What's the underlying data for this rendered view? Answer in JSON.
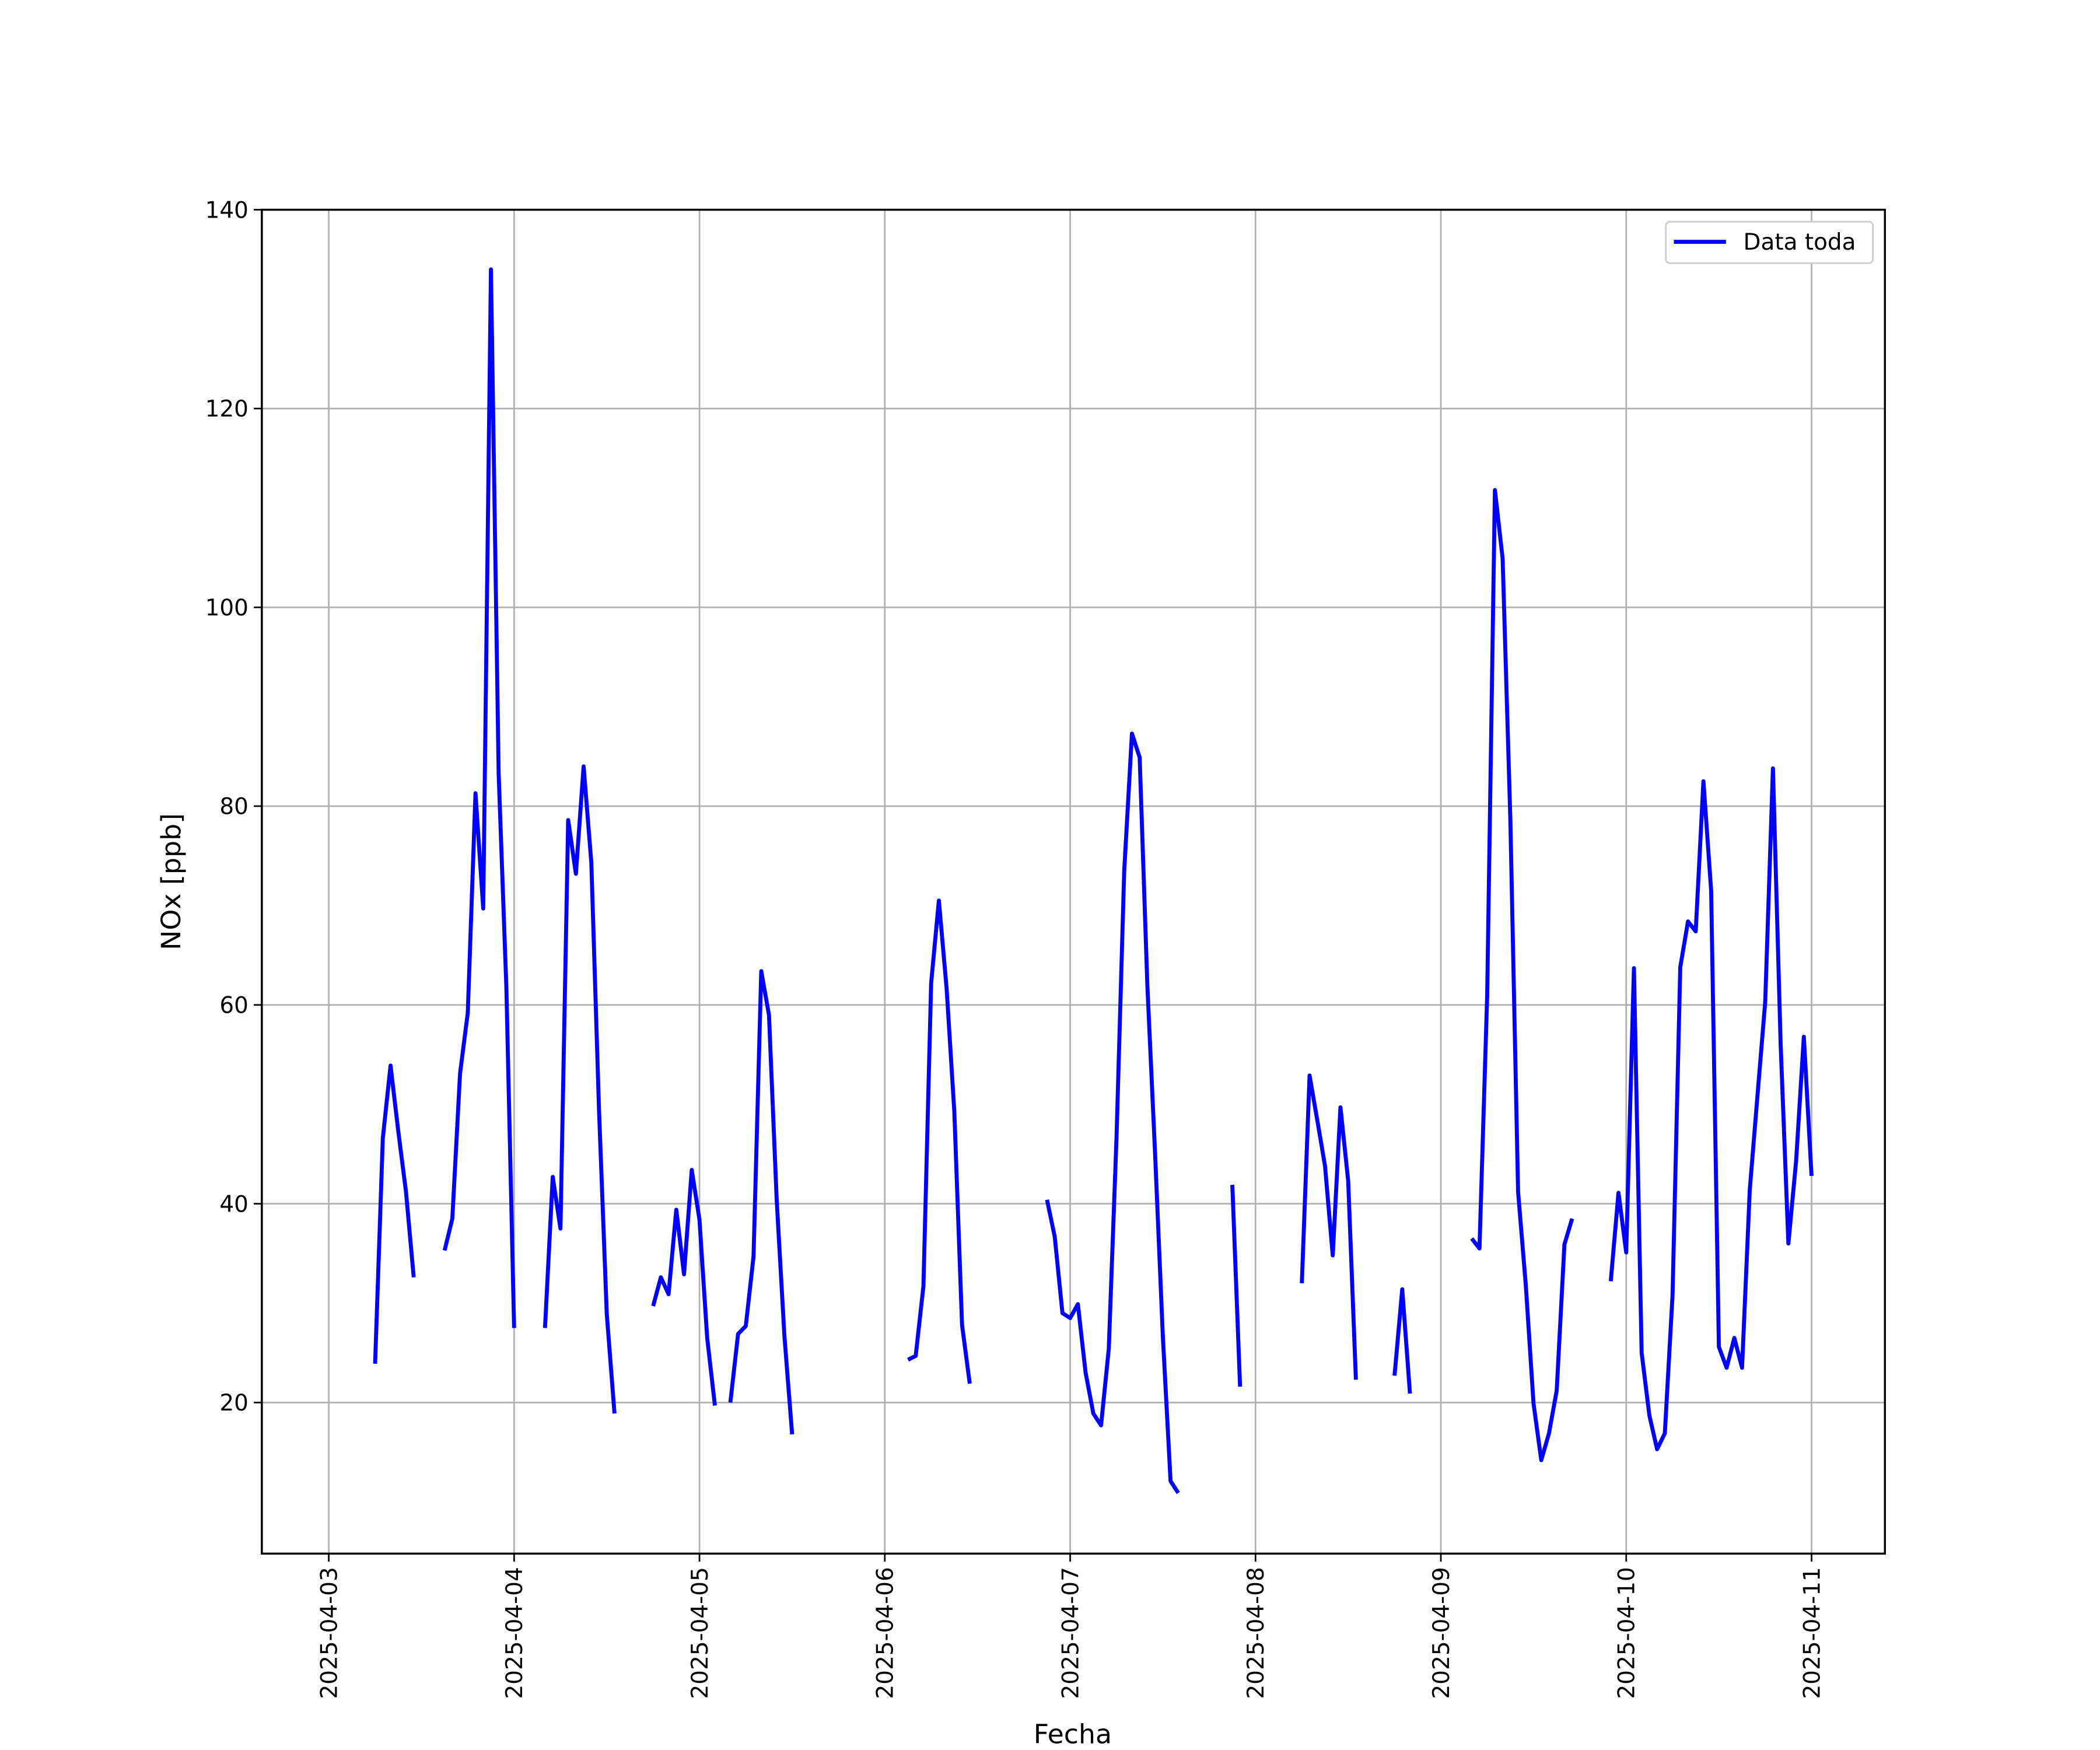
{
  "chart_data": {
    "type": "line",
    "xlabel": "Fecha",
    "ylabel": "NOx [ppb]",
    "x": [
      "2025-04-03 06:00",
      "2025-04-03 07:00",
      "2025-04-03 08:00",
      "2025-04-03 09:00",
      "2025-04-03 10:00",
      "2025-04-03 11:00",
      "2025-04-03 12:00",
      "2025-04-03 15:00",
      "2025-04-03 16:00",
      "2025-04-03 17:00",
      "2025-04-03 18:00",
      "2025-04-03 19:00",
      "2025-04-03 20:00",
      "2025-04-03 21:00",
      "2025-04-03 22:00",
      "2025-04-03 23:00",
      "2025-04-04 00:00",
      "2025-04-04 01:00",
      "2025-04-04 04:00",
      "2025-04-04 05:00",
      "2025-04-04 06:00",
      "2025-04-04 07:00",
      "2025-04-04 08:00",
      "2025-04-04 09:00",
      "2025-04-04 10:00",
      "2025-04-04 11:00",
      "2025-04-04 12:00",
      "2025-04-04 13:00",
      "2025-04-04 14:00",
      "2025-04-04 18:00",
      "2025-04-04 19:00",
      "2025-04-04 20:00",
      "2025-04-04 21:00",
      "2025-04-04 22:00",
      "2025-04-04 23:00",
      "2025-04-05 00:00",
      "2025-04-05 01:00",
      "2025-04-05 02:00",
      "2025-04-05 03:00",
      "2025-04-05 04:00",
      "2025-04-05 05:00",
      "2025-04-05 06:00",
      "2025-04-05 07:00",
      "2025-04-05 08:00",
      "2025-04-05 09:00",
      "2025-04-05 10:00",
      "2025-04-05 11:00",
      "2025-04-05 12:00",
      "2025-04-05 13:00",
      "2025-04-06 03:00",
      "2025-04-06 04:00",
      "2025-04-06 05:00",
      "2025-04-06 06:00",
      "2025-04-06 07:00",
      "2025-04-06 08:00",
      "2025-04-06 09:00",
      "2025-04-06 10:00",
      "2025-04-06 11:00",
      "2025-04-06 12:00",
      "2025-04-06 21:00",
      "2025-04-06 22:00",
      "2025-04-06 23:00",
      "2025-04-07 00:00",
      "2025-04-07 01:00",
      "2025-04-07 02:00",
      "2025-04-07 03:00",
      "2025-04-07 04:00",
      "2025-04-07 05:00",
      "2025-04-07 06:00",
      "2025-04-07 07:00",
      "2025-04-07 08:00",
      "2025-04-07 09:00",
      "2025-04-07 10:00",
      "2025-04-07 11:00",
      "2025-04-07 12:00",
      "2025-04-07 13:00",
      "2025-04-07 14:00",
      "2025-04-07 15:00",
      "2025-04-07 21:00",
      "2025-04-07 22:00",
      "2025-04-07 23:00",
      "2025-04-08 06:00",
      "2025-04-08 07:00",
      "2025-04-08 08:00",
      "2025-04-08 09:00",
      "2025-04-08 10:00",
      "2025-04-08 11:00",
      "2025-04-08 12:00",
      "2025-04-08 13:00",
      "2025-04-08 14:00",
      "2025-04-08 18:00",
      "2025-04-08 19:00",
      "2025-04-08 20:00",
      "2025-04-08 21:00",
      "2025-04-09 04:00",
      "2025-04-09 05:00",
      "2025-04-09 06:00",
      "2025-04-09 07:00",
      "2025-04-09 08:00",
      "2025-04-09 09:00",
      "2025-04-09 10:00",
      "2025-04-09 11:00",
      "2025-04-09 12:00",
      "2025-04-09 13:00",
      "2025-04-09 14:00",
      "2025-04-09 15:00",
      "2025-04-09 16:00",
      "2025-04-09 17:00",
      "2025-04-09 18:00",
      "2025-04-09 22:00",
      "2025-04-09 23:00",
      "2025-04-10 00:00",
      "2025-04-10 01:00",
      "2025-04-10 02:00",
      "2025-04-10 03:00",
      "2025-04-10 04:00",
      "2025-04-10 05:00",
      "2025-04-10 06:00",
      "2025-04-10 07:00",
      "2025-04-10 08:00",
      "2025-04-10 09:00",
      "2025-04-10 10:00",
      "2025-04-10 11:00",
      "2025-04-10 12:00",
      "2025-04-10 13:00",
      "2025-04-10 14:00",
      "2025-04-10 15:00",
      "2025-04-10 16:00",
      "2025-04-10 17:00",
      "2025-04-10 18:00",
      "2025-04-10 19:00",
      "2025-04-10 20:00",
      "2025-04-10 21:00",
      "2025-04-10 22:00",
      "2025-04-10 23:00",
      "2025-04-11 00:00"
    ],
    "series": [
      {
        "name": "Data toda",
        "color": "#0000ff",
        "values": [
          23.9,
          46.6,
          53.9,
          47.3,
          41.2,
          32.6,
          null,
          35.3,
          38.5,
          53.1,
          59.2,
          81.3,
          69.7,
          134,
          83.2,
          61.7,
          27.5,
          null,
          27.5,
          42.7,
          37.5,
          78.6,
          73.2,
          84,
          74.3,
          49.3,
          28.9,
          18.9,
          null,
          29.7,
          32.6,
          30.9,
          39.4,
          32.9,
          43.4,
          38.4,
          26.5,
          19.7,
          null,
          20,
          26.9,
          27.7,
          34.7,
          63.4,
          59,
          40.4,
          26.7,
          16.8,
          null,
          24.3,
          24.7,
          31.7,
          62.2,
          70.5,
          61.7,
          49.3,
          27.8,
          21.9,
          null,
          40.4,
          36.7,
          29,
          28.5,
          29.9,
          23,
          18.9,
          17.7,
          25.4,
          46.6,
          73.5,
          87.3,
          84.9,
          61.9,
          45,
          26.7,
          12.1,
          10.9,
          null,
          41.9,
          21.6,
          null,
          32,
          52.9,
          48.4,
          43.8,
          34.8,
          49.7,
          42.3,
          22.3,
          null,
          22.7,
          31.4,
          20.9,
          null,
          36.5,
          35.5,
          61,
          111.8,
          104.9,
          78.6,
          41.2,
          31.8,
          19.9,
          14.2,
          16.9,
          21.2,
          35.9,
          38.5,
          null,
          32.2,
          41.1,
          35.1,
          63.7,
          25,
          18.7,
          15.3,
          16.9,
          30.8,
          63.8,
          68.4,
          67.4,
          82.5,
          71.5,
          25.6,
          23.5,
          26.5,
          23.5,
          41.4,
          50.9,
          60.3,
          83.8,
          56,
          36,
          44.3,
          56.8,
          42.8
        ]
      }
    ],
    "xlim": [
      "2025-04-02 15:20",
      "2025-04-11 09:30"
    ],
    "xticks": [
      "2025-04-03",
      "2025-04-04",
      "2025-04-05",
      "2025-04-06",
      "2025-04-07",
      "2025-04-08",
      "2025-04-09",
      "2025-04-10",
      "2025-04-11"
    ],
    "ylim": [
      4.8,
      140
    ],
    "yticks": [
      20,
      40,
      60,
      80,
      100,
      120,
      140
    ],
    "grid": true,
    "legend": "upper right"
  }
}
